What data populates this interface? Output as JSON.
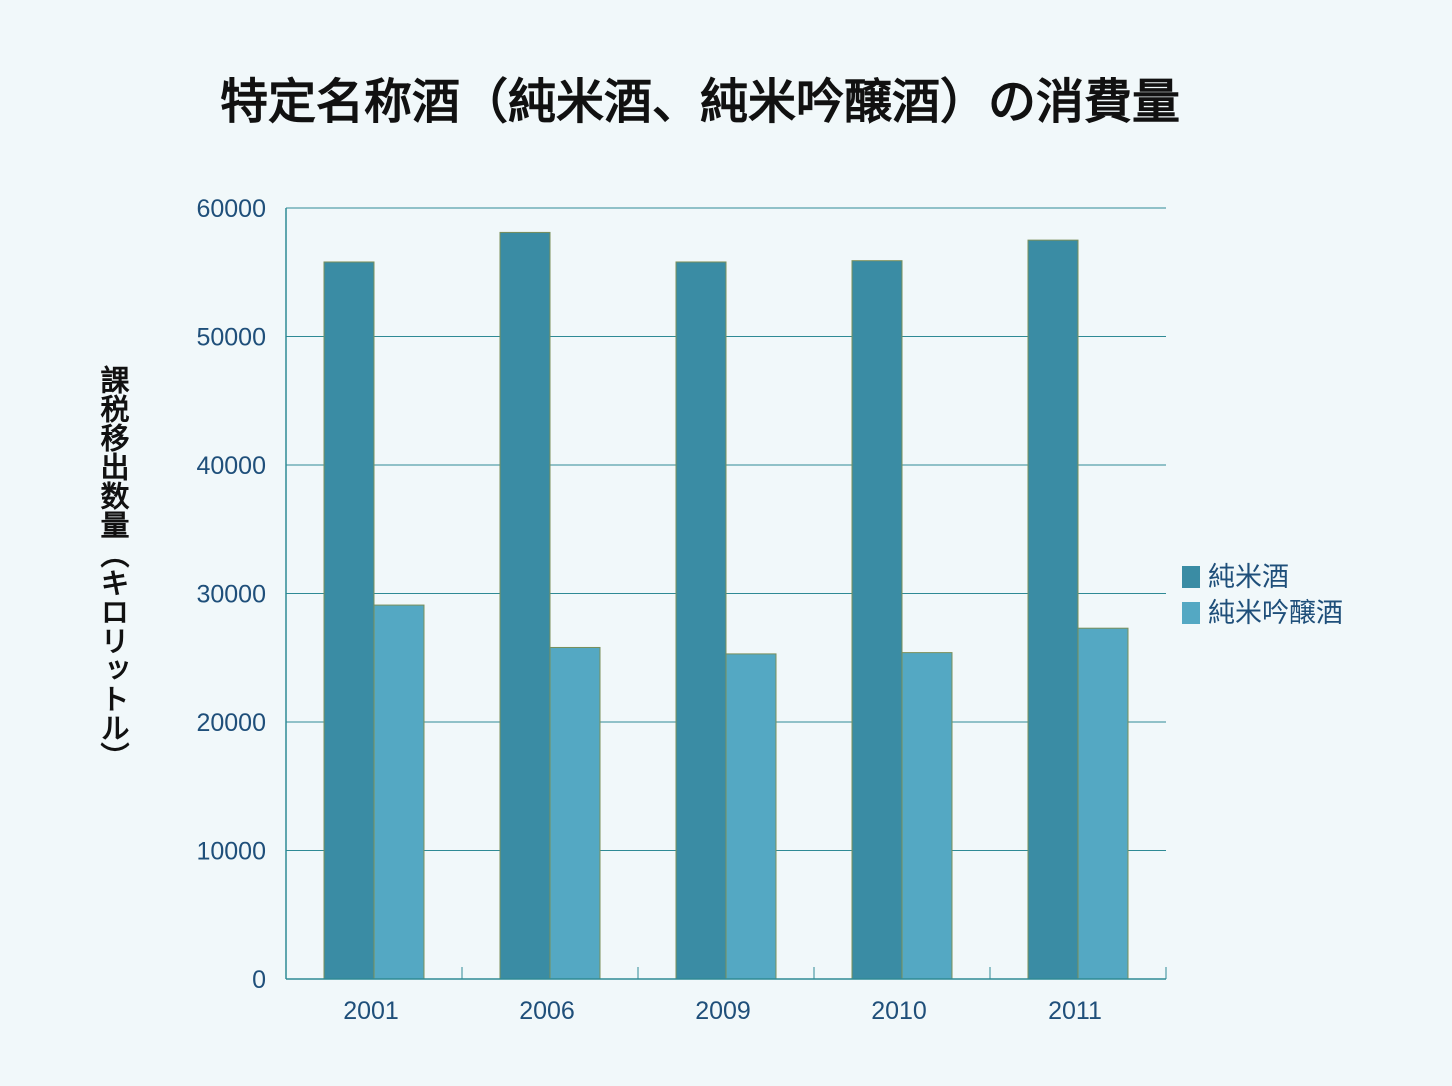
{
  "chart_data": {
    "type": "bar",
    "title": "特定名称酒（純米酒、純米吟醸酒）の消費量",
    "xlabel": "",
    "ylabel": "課税移出数量（キロリットル）",
    "categories": [
      "2001",
      "2006",
      "2009",
      "2010",
      "2011"
    ],
    "series": [
      {
        "name": "純米酒",
        "color": "#3a8ca4",
        "values": [
          55800,
          58100,
          55800,
          55900,
          57500
        ]
      },
      {
        "name": "純米吟醸酒",
        "color": "#54a8c3",
        "values": [
          29100,
          25800,
          25300,
          25400,
          27300
        ]
      }
    ],
    "ylim": [
      0,
      60000
    ],
    "yticks": [
      "0",
      "10000",
      "20000",
      "30000",
      "40000",
      "50000",
      "60000"
    ],
    "grid": true,
    "legend_position": "right"
  }
}
